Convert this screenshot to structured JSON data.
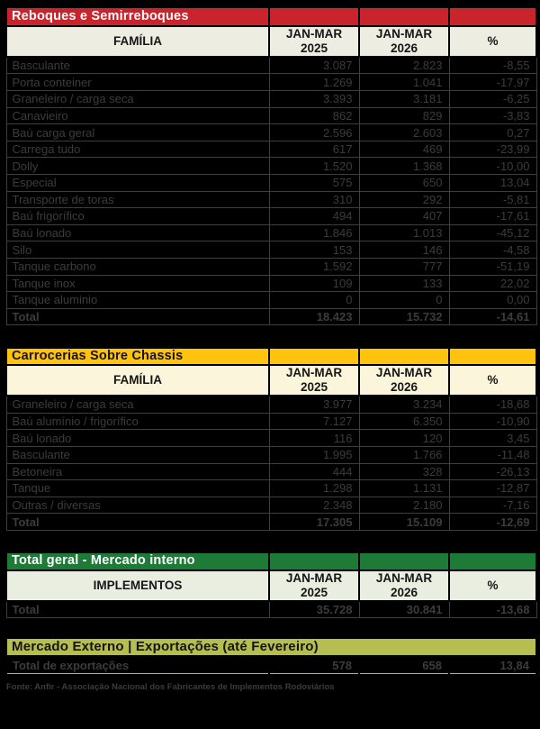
{
  "colors": {
    "page_bg": "#000000",
    "band_red": "#C9242B",
    "band_yellow": "#FFC20E",
    "band_green": "#1D7A37",
    "band_olive": "#B6BD51",
    "header_bg_gray": "#EDEDE1",
    "header_bg_cream": "#FBF6DB",
    "header_bg_green": "#E9EEE1",
    "row_bg": "#000000",
    "row_text": "#3C3C3C"
  },
  "columns": {
    "c2025": "JAN-MAR\n2025",
    "c2026": "JAN-MAR\n2026",
    "pct": "%"
  },
  "sections": [
    {
      "title": "Reboques e Semirreboques",
      "family_header": "FAMÍLIA",
      "rows": [
        [
          "Basculante",
          "3.087",
          "2.823",
          "-8,55"
        ],
        [
          "Porta conteiner",
          "1.269",
          "1.041",
          "-17,97"
        ],
        [
          "Graneleiro / carga seca",
          "3.393",
          "3.181",
          "-6,25"
        ],
        [
          "Canavieiro",
          "862",
          "829",
          "-3,83"
        ],
        [
          "Baú carga geral",
          "2.596",
          "2.603",
          "0,27"
        ],
        [
          "Carrega tudo",
          "617",
          "469",
          "-23,99"
        ],
        [
          "Dolly",
          "1.520",
          "1.368",
          "-10,00"
        ],
        [
          "Especial",
          "575",
          "650",
          "13,04"
        ],
        [
          "Transporte de toras",
          "310",
          "292",
          "-5,81"
        ],
        [
          "Baú frigorífico",
          "494",
          "407",
          "-17,61"
        ],
        [
          "Baú lonado",
          "1.846",
          "1.013",
          "-45,12"
        ],
        [
          "Silo",
          "153",
          "146",
          "-4,58"
        ],
        [
          "Tanque carbono",
          "1.592",
          "777",
          "-51,19"
        ],
        [
          "Tanque inox",
          "109",
          "133",
          "22,02"
        ],
        [
          "Tanque aluminio",
          "0",
          "0",
          "0,00"
        ],
        [
          "Total",
          "18.423",
          "15.732",
          "-14,61"
        ]
      ]
    },
    {
      "title": "Carrocerias Sobre Chassis",
      "family_header": "FAMÍLIA",
      "rows": [
        [
          "Graneleiro / carga seca",
          "3.977",
          "3.234",
          "-18,68"
        ],
        [
          "Baú alumínio / frigorífico",
          "7.127",
          "6.350",
          "-10,90"
        ],
        [
          "Baú lonado",
          "116",
          "120",
          "3,45"
        ],
        [
          "Basculante",
          "1.995",
          "1.766",
          "-11,48"
        ],
        [
          "Betoneira",
          "444",
          "328",
          "-26,13"
        ],
        [
          "Tanque",
          "1.298",
          "1.131",
          "-12,87"
        ],
        [
          "Outras / diversas",
          "2.348",
          "2.180",
          "-7,16"
        ],
        [
          "Total",
          "17.305",
          "15.109",
          "-12,69"
        ]
      ]
    },
    {
      "title": "Total geral - Mercado interno",
      "family_header": "IMPLEMENTOS",
      "rows": [
        [
          "Total",
          "35.728",
          "30.841",
          "-13,68"
        ]
      ]
    },
    {
      "title": "Mercado Externo | Exportações  (até Fevereiro)",
      "rows": [
        [
          "Total de exportações",
          "578",
          "658",
          "13,84"
        ]
      ]
    }
  ],
  "footer": "Fonte: Anfir - Associação Nacional dos Fabricantes de Implementos Rodoviários"
}
